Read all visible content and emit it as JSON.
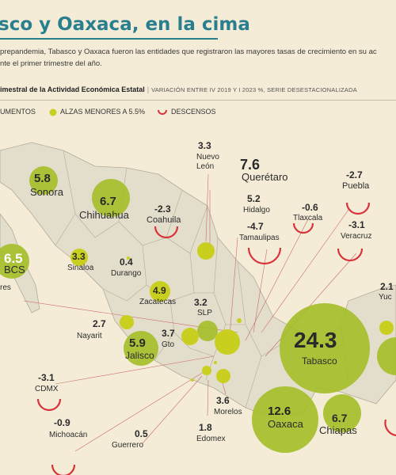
{
  "title": "sco y Oaxaca, en la cima",
  "intro_lines": [
    "prepandemia, Tabasco y Oaxaca fueron las entidades que registraron las mayores tasas de crecimiento en su ac",
    "nte el primer trimestre del año."
  ],
  "subhead": {
    "main": "imestral de la Actividad Económica Estatal",
    "detail": "VARIACIÓN ENTRE IV 2019 Y I 2023 %, SERIE DESESTACIONALIZADA"
  },
  "legend": {
    "big": "UMENTOS",
    "small": "ALZAS MENORES A 5.5%",
    "down": "DESCENSOS"
  },
  "colors": {
    "big_bubble": "#a3be28",
    "small_bubble": "#c9cf1e",
    "decline": "#d9333a",
    "title": "#2a7f8f",
    "land": "#e3ddcc",
    "border": "#b2ab96"
  },
  "states": [
    {
      "id": "sonora",
      "name": "Sonora",
      "value": "5.8"
    },
    {
      "id": "chihuahua",
      "name": "Chihuahua",
      "value": "6.7"
    },
    {
      "id": "coahuila",
      "name": "Coahuila",
      "value": "-2.3"
    },
    {
      "id": "nuevo-leon",
      "name": "Nuevo\nLeón",
      "value": "3.3"
    },
    {
      "id": "queretaro",
      "name": "Querétaro",
      "value": "7.6"
    },
    {
      "id": "puebla",
      "name": "Puebla",
      "value": "-2.7"
    },
    {
      "id": "hidalgo",
      "name": "Hidalgo",
      "value": "5.2"
    },
    {
      "id": "tlaxcala",
      "name": "Tlaxcala",
      "value": "-0.6"
    },
    {
      "id": "tamaulipas",
      "name": "Tamaulipas",
      "value": "-4.7"
    },
    {
      "id": "veracruz",
      "name": "Veracruz",
      "value": "-3.1"
    },
    {
      "id": "bcs",
      "name": "BCS",
      "value": "6.5"
    },
    {
      "id": "sinaloa",
      "name": "Sinaloa",
      "value": "3.3"
    },
    {
      "id": "durango",
      "name": "Durango",
      "value": "0.4"
    },
    {
      "id": "zacatecas",
      "name": "Zacatecas",
      "value": "4.9"
    },
    {
      "id": "slp",
      "name": "SLP",
      "value": "3.2"
    },
    {
      "id": "yucatan",
      "name": "Yuc",
      "value": "2.1"
    },
    {
      "id": "nayarit",
      "name": "Nayarit",
      "value": "2.7"
    },
    {
      "id": "guanajuato",
      "name": "Gto",
      "value": "3.7"
    },
    {
      "id": "jalisco",
      "name": "Jalisco",
      "value": "5.9"
    },
    {
      "id": "tabasco",
      "name": "Tabasco",
      "value": "24.3"
    },
    {
      "id": "cdmx",
      "name": "CDMX",
      "value": "-3.1"
    },
    {
      "id": "morelos",
      "name": "Morelos",
      "value": "3.6"
    },
    {
      "id": "oaxaca",
      "name": "Oaxaca",
      "value": "12.6"
    },
    {
      "id": "chiapas",
      "name": "Chiapas",
      "value": "6.7"
    },
    {
      "id": "michoacan",
      "name": "Michoacán",
      "value": "-0.9"
    },
    {
      "id": "edomex",
      "name": "Edomex",
      "value": "1.8"
    },
    {
      "id": "guerrero",
      "name": "Guerrero",
      "value": "0.5"
    }
  ],
  "partial_labels": {
    "bcs_left_fragment": "res"
  }
}
